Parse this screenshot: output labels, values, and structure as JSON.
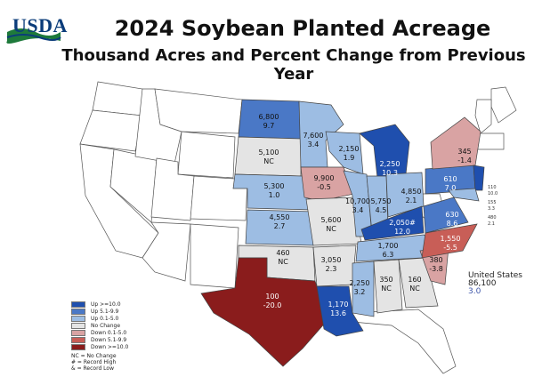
{
  "header": {
    "logo_text": "USDA",
    "title": "2024 Soybean Planted Acreage",
    "subtitle": "Thousand Acres and Percent Change from Previous Year"
  },
  "colors": {
    "up_10": "#1f4fae",
    "up_5": "#4a78c6",
    "up_0": "#9dbde3",
    "no_change": "#e4e4e4",
    "down_0": "#d9a3a3",
    "down_5": "#c85e57",
    "down_10": "#8a1c1c"
  },
  "states": {
    "nd": {
      "acres": "6,800",
      "change": "9.7"
    },
    "mn": {
      "acres": "7,600",
      "change": "3.4"
    },
    "sd": {
      "acres": "5,100",
      "change": "NC"
    },
    "wi": {
      "acres": "2,150",
      "change": "1.9"
    },
    "mi": {
      "acres": "2,250",
      "change": "10.3"
    },
    "ia": {
      "acres": "9,900",
      "change": "-0.5"
    },
    "ne": {
      "acres": "5,300",
      "change": "1.0"
    },
    "il": {
      "acres": "10,700",
      "change": "3.4"
    },
    "in": {
      "acres": "5,750",
      "change": "4.5"
    },
    "oh": {
      "acres": "4,850",
      "change": "2.1"
    },
    "ny": {
      "acres": "345",
      "change": "-1.4"
    },
    "pa": {
      "acres": "610",
      "change": "7.0"
    },
    "ks": {
      "acres": "4,550",
      "change": "2.7"
    },
    "mo": {
      "acres": "5,600",
      "change": "NC"
    },
    "ky": {
      "acres": "2,050#",
      "change": "12.0"
    },
    "va": {
      "acres": "630",
      "change": "8.6"
    },
    "ok": {
      "acres": "460",
      "change": "NC"
    },
    "ar": {
      "acres": "3,050",
      "change": "2.3"
    },
    "tn": {
      "acres": "1,700",
      "change": "6.3"
    },
    "nc": {
      "acres": "1,550",
      "change": "-5.5"
    },
    "sc": {
      "acres": "380",
      "change": "-3.8"
    },
    "tx": {
      "acres": "100",
      "change": "-20.0"
    },
    "la": {
      "acres": "1,170",
      "change": "13.6"
    },
    "ms": {
      "acres": "2,250",
      "change": "3.2"
    },
    "al": {
      "acres": "350",
      "change": "NC"
    },
    "ga": {
      "acres": "160",
      "change": "NC"
    },
    "nj": {
      "acres": "110",
      "change": "10.0"
    },
    "de": {
      "acres": "155",
      "change": "3.3"
    },
    "md": {
      "acres": "480",
      "change": "2.1"
    }
  },
  "us": {
    "label": "United States",
    "acres": "86,100",
    "change": "3.0"
  },
  "legend": {
    "items": [
      {
        "label": "Up >=10.0",
        "color": "#1f4fae"
      },
      {
        "label": "Up 5.1-9.9",
        "color": "#4a78c6"
      },
      {
        "label": "Up 0.1-5.0",
        "color": "#9dbde3"
      },
      {
        "label": "No Change",
        "color": "#e4e4e4"
      },
      {
        "label": "Down 0.1-5.0",
        "color": "#d9a3a3"
      },
      {
        "label": "Down 5.1-9.9",
        "color": "#c85e57"
      },
      {
        "label": "Down >=10.0",
        "color": "#8a1c1c"
      }
    ],
    "notes": [
      "NC = No Change",
      "# = Record High",
      "& = Record Low"
    ]
  }
}
